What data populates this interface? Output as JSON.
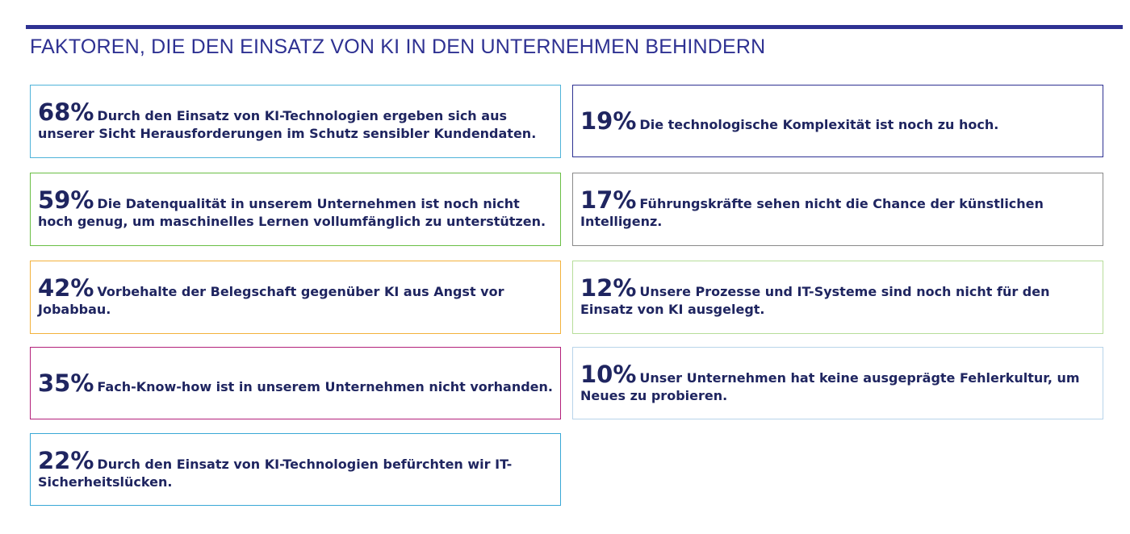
{
  "title": "FAKTOREN, DIE DEN EINSATZ VON KI IN DEN UNTERNEHMEN BEHINDERN",
  "colors": {
    "rule": "#2e3192",
    "title": "#2e3192",
    "text": "#1f2560"
  },
  "chart_data": {
    "type": "table",
    "title": "FAKTOREN, DIE DEN EINSATZ VON KI IN DEN UNTERNEHMEN BEHINDERN",
    "unit": "%",
    "items": [
      {
        "value": 68,
        "label": "68%",
        "text": "Durch den Einsatz von KI-Technologien ergeben sich aus unserer Sicht Herausforderungen im Schutz sensibler Kundendaten.",
        "border_color": "#4fb3d9"
      },
      {
        "value": 59,
        "label": "59%",
        "text": "Die Datenqualität in unserem Unternehmen ist noch nicht hoch genug, um maschinelles Lernen vollumfänglich zu unterstützen.",
        "border_color": "#6abf45"
      },
      {
        "value": 42,
        "label": "42%",
        "text": "Vorbehalte der Belegschaft gegenüber KI aus Angst vor Jobabbau.",
        "border_color": "#f3b23c"
      },
      {
        "value": 35,
        "label": "35%",
        "text": "Fach-Know-how ist in unserem Unternehmen nicht vorhanden.",
        "border_color": "#b3207a"
      },
      {
        "value": 22,
        "label": "22%",
        "text": "Durch den Einsatz von KI-Technologien befürchten wir IT-Sicherheitslücken.",
        "border_color": "#39a8d6"
      },
      {
        "value": 19,
        "label": "19%",
        "text": "Die technologische Komplexität ist noch zu hoch.",
        "border_color": "#2e3192"
      },
      {
        "value": 17,
        "label": "17%",
        "text": "Führungskräfte sehen nicht die Chance der künstlichen Intelligenz.",
        "border_color": "#8a8a8a"
      },
      {
        "value": 12,
        "label": "12%",
        "text": "Unsere Prozesse und IT-Systeme sind noch nicht für den Einsatz von KI ausgelegt.",
        "border_color": "#b7dd9a"
      },
      {
        "value": 10,
        "label": "10%",
        "text": "Unser Unternehmen hat keine ausgeprägte Fehlerkultur, um Neues zu probieren.",
        "border_color": "#b8d4ea"
      }
    ]
  }
}
